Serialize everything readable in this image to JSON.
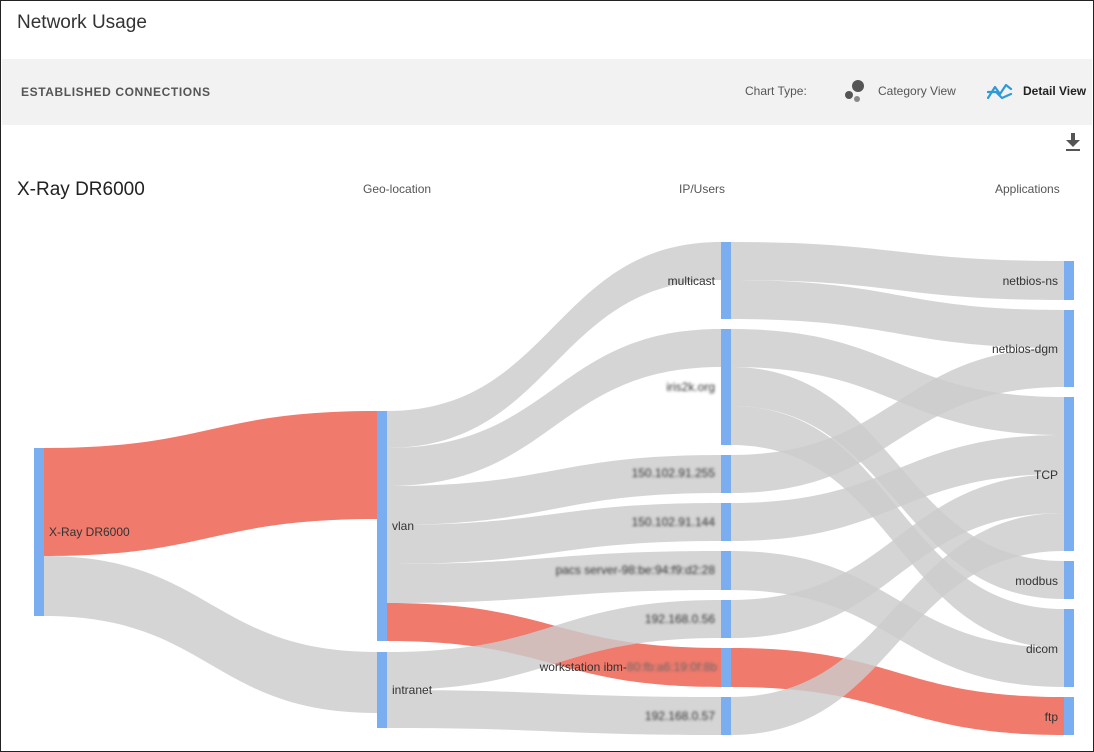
{
  "page": {
    "title": "Network Usage"
  },
  "toolbar": {
    "section_title": "ESTABLISHED CONNECTIONS",
    "chart_type_label": "Chart Type:",
    "options": [
      {
        "label": "Category View",
        "icon": "bubbles-icon",
        "active": false
      },
      {
        "label": "Detail View",
        "icon": "trend-lines-icon",
        "active": true
      }
    ]
  },
  "actions": {
    "download_icon": "download-icon"
  },
  "sankey": {
    "device_title": "X-Ray DR6000",
    "columns": [
      "Geo-location",
      "IP/Users",
      "Applications"
    ],
    "colors": {
      "node": "#7aaef0",
      "link": "#cccccc",
      "highlight": "#ef6f5f"
    },
    "nodes": {
      "device": "X-Ray DR6000",
      "vlan": "vlan",
      "intranet": "intranet",
      "multicast": "multicast",
      "ip_isc": "iris2k.org",
      "ip_255": "150.102.91.255",
      "ip_144": "150.102.91.144",
      "ip_pacs": "pacs server-98:be:94:f9:d2:28",
      "ip_056": "192.168.0.56",
      "ip_ws": "workstation ibm-80:fb:a6:19:0f:8b",
      "ip_057": "192.168.0.57",
      "netbios_ns": "netbios-ns",
      "netbios_dgm": "netbios-dgm",
      "tcp": "TCP",
      "modbus": "modbus",
      "dicom": "dicom",
      "ftp": "ftp"
    }
  }
}
